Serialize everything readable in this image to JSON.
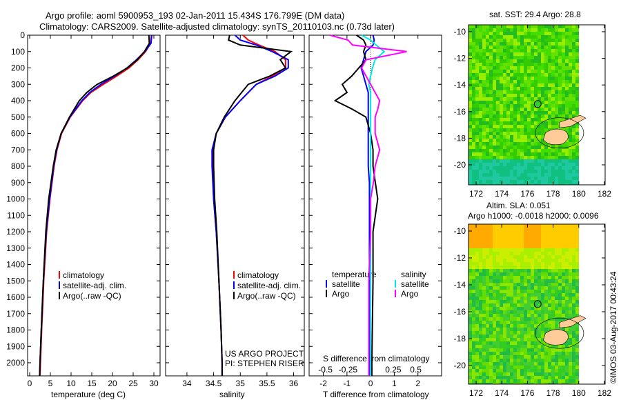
{
  "header": {
    "title_line1": "Argo profile: aoml 5900953_193 02-Jan-2011 15.434S 176.799E (DM data)",
    "title_line2": "Climatology: CARS2009. Satellite-adjusted climatology: synTS_20110103.nc (0.73d later)"
  },
  "colors": {
    "climatology": "#ff0000",
    "satellite": "#0000ff",
    "argo": "#000000",
    "sal_satellite": "#00e5e5",
    "sal_argo": "#ff00ff",
    "land": "#ffcc99"
  },
  "credits": {
    "project": "US ARGO PROJECT",
    "pi": "PI: STEPHEN RISER",
    "imos": "©IMOS 03-Aug-2017 00:43:24"
  },
  "chart_data": [
    {
      "type": "line",
      "id": "temperature",
      "xlabel": "temperature (deg C)",
      "ylabel": "",
      "xlim": [
        -0.5,
        31.5
      ],
      "ylim": [
        2080,
        0
      ],
      "xticks": [
        "0",
        "5",
        "10",
        "15",
        "20",
        "25",
        "30"
      ],
      "yticks": [
        "0",
        "100",
        "200",
        "300",
        "400",
        "500",
        "600",
        "700",
        "800",
        "900",
        "1000",
        "1100",
        "1200",
        "1300",
        "1400",
        "1500",
        "1600",
        "1700",
        "1800",
        "1900",
        "2000"
      ],
      "legend": [
        "climatology",
        "satellite-adj. clim.",
        "Argo(..raw -QC)"
      ],
      "depth": [
        0,
        50,
        100,
        150,
        200,
        250,
        300,
        350,
        400,
        500,
        600,
        700,
        800,
        1000,
        1200,
        1500,
        1800,
        2000,
        2080
      ],
      "series": [
        {
          "name": "climatology",
          "values": [
            29.4,
            29.2,
            28.0,
            26.2,
            24.0,
            21.0,
            17.8,
            14.8,
            12.8,
            9.8,
            7.7,
            6.6,
            5.9,
            4.9,
            4.1,
            3.4,
            2.9,
            2.6,
            2.5
          ]
        },
        {
          "name": "satellite-adj. clim.",
          "values": [
            29.5,
            29.3,
            27.8,
            25.8,
            23.5,
            20.5,
            17.2,
            14.5,
            12.6,
            9.7,
            7.6,
            6.5,
            5.8,
            4.8,
            4.0,
            3.3,
            2.8,
            2.5,
            2.4
          ]
        },
        {
          "name": "Argo(..raw -QC)",
          "values": [
            28.8,
            28.9,
            27.7,
            26.0,
            23.6,
            20.2,
            16.3,
            13.8,
            12.0,
            9.6,
            7.6,
            6.4,
            5.7,
            4.6,
            3.9,
            3.3,
            2.8,
            2.5,
            2.4
          ]
        }
      ]
    },
    {
      "type": "line",
      "id": "salinity",
      "xlabel": "salinity",
      "xlim": [
        33.6,
        36.2
      ],
      "ylim": [
        2080,
        0
      ],
      "xticks": [
        "34",
        "34.5",
        "35",
        "35.5",
        "36"
      ],
      "legend": [
        "climatology",
        "satellite-adj. clim.",
        "Argo(..raw -QC)"
      ],
      "depth": [
        0,
        30,
        60,
        100,
        150,
        200,
        250,
        300,
        400,
        500,
        600,
        700,
        800,
        1000,
        1200,
        1500,
        1800,
        2000,
        2080
      ],
      "series": [
        {
          "name": "climatology",
          "values": [
            35.05,
            35.15,
            35.35,
            35.65,
            35.85,
            35.85,
            35.6,
            35.3,
            35.0,
            34.72,
            34.55,
            34.48,
            34.48,
            34.5,
            34.55,
            34.6,
            34.64,
            34.66,
            34.66
          ]
        },
        {
          "name": "satellite-adj. clim.",
          "values": [
            34.9,
            35.0,
            35.3,
            35.6,
            35.9,
            35.9,
            35.65,
            35.3,
            35.0,
            34.72,
            34.55,
            34.47,
            34.47,
            34.5,
            34.55,
            34.6,
            34.64,
            34.66,
            34.66
          ]
        },
        {
          "name": "Argo(..raw -QC)",
          "values": [
            34.8,
            34.78,
            35.0,
            35.95,
            35.75,
            35.85,
            35.55,
            35.15,
            34.9,
            34.7,
            34.55,
            34.5,
            34.5,
            34.52,
            34.56,
            34.6,
            34.64,
            34.66,
            34.66
          ]
        }
      ]
    },
    {
      "type": "line",
      "id": "differences",
      "xlabel": "T difference from climatology",
      "x2label": "S difference from climatology",
      "xlim": [
        -2.6,
        3.0
      ],
      "x2lim": [
        -0.5,
        0.5
      ],
      "ylim": [
        2080,
        0
      ],
      "xticks": [
        "-2",
        "-1",
        "0",
        "1",
        "2"
      ],
      "x2ticks": [
        "-0.5",
        "-0.25",
        "0",
        "0.25",
        "0.5"
      ],
      "legend_temperature": {
        "heading": "temperature",
        "items": [
          "satellite",
          "Argo"
        ]
      },
      "legend_salinity": {
        "heading": "salinity",
        "items": [
          "satellite",
          "Argo"
        ]
      },
      "depth": [
        0,
        30,
        60,
        100,
        150,
        200,
        250,
        300,
        350,
        400,
        450,
        500,
        600,
        700,
        800,
        900,
        1000,
        1200,
        1500,
        2000,
        2080
      ],
      "series": [
        {
          "name": "T satellite",
          "axis": "T",
          "values": [
            0.1,
            0.15,
            0.1,
            -0.2,
            -0.3,
            -0.4,
            -0.3,
            -0.2,
            -0.1,
            -0.1,
            -0.1,
            -0.1,
            -0.1,
            -0.1,
            -0.1,
            -0.05,
            -0.05,
            -0.05,
            -0.05,
            -0.05,
            -0.05
          ]
        },
        {
          "name": "T Argo",
          "axis": "T",
          "values": [
            -0.6,
            -0.3,
            -0.2,
            -0.3,
            -0.2,
            -0.5,
            -0.8,
            -1.2,
            -1.0,
            -1.5,
            -0.8,
            -0.2,
            0.0,
            0.1,
            0.1,
            0.2,
            0.3,
            0.1,
            0.1,
            0.05,
            0.05
          ]
        },
        {
          "name": "S satellite",
          "axis": "S",
          "values": [
            -0.1,
            0.0,
            0.06,
            0.15,
            0.05,
            0.02,
            0.0,
            -0.02,
            0.0,
            0.0,
            0.0,
            0.0,
            0.0,
            0.0,
            0.0,
            0.0,
            0.0,
            0.0,
            0.0,
            0.0,
            0.0
          ]
        },
        {
          "name": "S Argo",
          "axis": "S",
          "values": [
            -0.45,
            -0.25,
            -0.2,
            0.4,
            -0.05,
            -0.1,
            -0.05,
            0.0,
            0.05,
            0.1,
            0.08,
            0.05,
            0.05,
            0.1,
            0.05,
            0.03,
            0.0,
            0.0,
            -0.02,
            -0.02,
            -0.02
          ]
        }
      ]
    },
    {
      "type": "heatmap",
      "id": "sst-map",
      "title": "sat. SST: 29.4  Argo: 28.8",
      "xlim": [
        171.5,
        182.1
      ],
      "ylim": [
        -21.4,
        -9.5
      ],
      "xticks": [
        "172",
        "174",
        "176",
        "178",
        "180",
        "182"
      ],
      "yticks": [
        "-10",
        "-12",
        "-14",
        "-16",
        "-18",
        "-20"
      ],
      "float_position": [
        176.8,
        -15.43
      ]
    },
    {
      "type": "heatmap",
      "id": "sla-map",
      "title_line1": "Altim. SLA: 0.051",
      "title_line2": "Argo h1000: -0.0018 h2000: 0.0096",
      "xlim": [
        171.5,
        182.1
      ],
      "ylim": [
        -21.4,
        -9.5
      ],
      "xticks": [
        "172",
        "174",
        "176",
        "178",
        "180",
        "182"
      ],
      "yticks": [
        "-10",
        "-12",
        "-14",
        "-16",
        "-18",
        "-20"
      ],
      "float_position": [
        176.8,
        -15.43
      ]
    }
  ]
}
